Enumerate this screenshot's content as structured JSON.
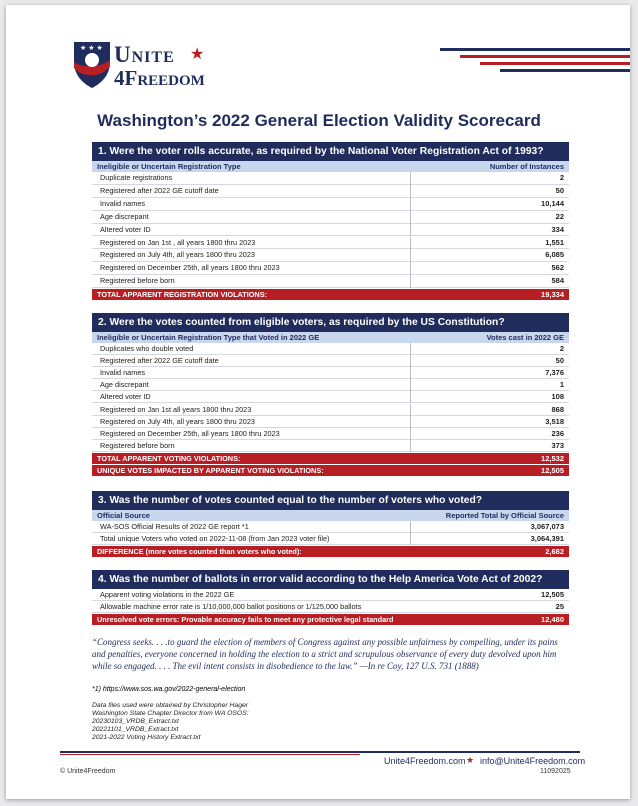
{
  "header": {
    "brand_top": "Unite",
    "brand_bottom": "4Freedom",
    "title": "Washington’s 2022 General Election Validity Scorecard"
  },
  "sections": [
    {
      "question": "1. Were the voter rolls accurate, as required by the National Voter Registration Act of 1993?",
      "columns": [
        "Ineligible or Uncertain Registration Type",
        "Number of Instances"
      ],
      "rows": [
        [
          "Duplicate registrations",
          "2"
        ],
        [
          "Registered after 2022 GE cutoff date",
          "50"
        ],
        [
          "Invalid names",
          "10,144"
        ],
        [
          "Age discrepant",
          "22"
        ],
        [
          "Altered voter ID",
          "334"
        ],
        [
          "Registered on Jan 1st , all years 1800 thru 2023",
          "1,551"
        ],
        [
          "Registered on July 4th, all years 1800 thru 2023",
          "6,085"
        ],
        [
          "Registered on December 25th, all years 1800 thru 2023",
          "562"
        ],
        [
          "Registered before born",
          "584"
        ]
      ],
      "totals": [
        [
          "TOTAL APPARENT REGISTRATION VIOLATIONS:",
          "19,334"
        ]
      ]
    },
    {
      "question": "2. Were the votes counted from eligible voters, as required by the US Constitution?",
      "columns": [
        "Ineligible or Uncertain Registration Type that Voted in 2022 GE",
        "Votes cast in 2022 GE"
      ],
      "rows": [
        [
          "Duplicates who double voted",
          "2"
        ],
        [
          "Registered after 2022 GE cutoff date",
          "50"
        ],
        [
          "Invalid names",
          "7,376"
        ],
        [
          "Age discrepant",
          "1"
        ],
        [
          "Altered voter ID",
          "108"
        ],
        [
          "Registered on Jan 1st  all years 1800 thru 2023",
          "868"
        ],
        [
          "Registered on July 4th, all years 1800 thru 2023",
          "3,518"
        ],
        [
          "Registered on December 25th, all years 1800 thru 2023",
          "236"
        ],
        [
          "Registered before born",
          "373"
        ]
      ],
      "totals": [
        [
          "TOTAL APPARENT VOTING VIOLATIONS:",
          "12,532"
        ],
        [
          "UNIQUE VOTES IMPACTED BY APPARENT VOTING VIOLATIONS:",
          "12,505"
        ]
      ]
    },
    {
      "question": "3. Was the number of votes counted equal to the number of voters who voted?",
      "columns": [
        "Official Source",
        "Reported Total by Official Source"
      ],
      "rows": [
        [
          "WA-SOS Official Results of 2022 GE report *1",
          "3,067,073"
        ],
        [
          "Total unique Voters who voted on 2022-11-08 (from Jan 2023 voter file)",
          "3,064,391"
        ]
      ],
      "totals": [
        [
          "DIFFERENCE (more votes counted than voters who voted):",
          "2,682"
        ]
      ]
    },
    {
      "question": "4. Was the number of ballots in error valid according to the Help America Vote Act of 2002?",
      "rows": [
        [
          "Apparent voting violations in the 2022 GE",
          "12,505"
        ],
        [
          "Allowable machine error rate is 1/10,000,000 ballot positions or 1/125,000 ballots",
          "25"
        ]
      ],
      "totals": [
        [
          "Unresolved vote errors: Provable accuracy fails to meet any protective legal standard",
          "12,480"
        ]
      ]
    }
  ],
  "quote": "“Congress seeks. . . .to guard the election of members of Congress against any possible unfairness by compelling, under its pains and penalties, everyone concerned in holding the election to a strict and scrupulous observance of every duty devolved upon him while so engaged. . . . The evil intent consists in disobedience to the law.”  —In re Coy, 127 U.S. 731 (1888)",
  "footnote": "*1) https://www.sos.wa.gov/2022-general-election",
  "data_notes": [
    "Data files used were obtained by Christopher Hager",
    "Washington State Chapter Director from WA OSOS:",
    "20230103_VRDB_Extract.txt",
    "20221101_VRDB_Extract.txt",
    "2021-2022 Voting History Extract.txt"
  ],
  "footer": {
    "website": "Unite4Freedom.com",
    "email": "info@Unite4Freedom.com",
    "copyright": "© Unite4Freedom",
    "code": "11092025"
  }
}
